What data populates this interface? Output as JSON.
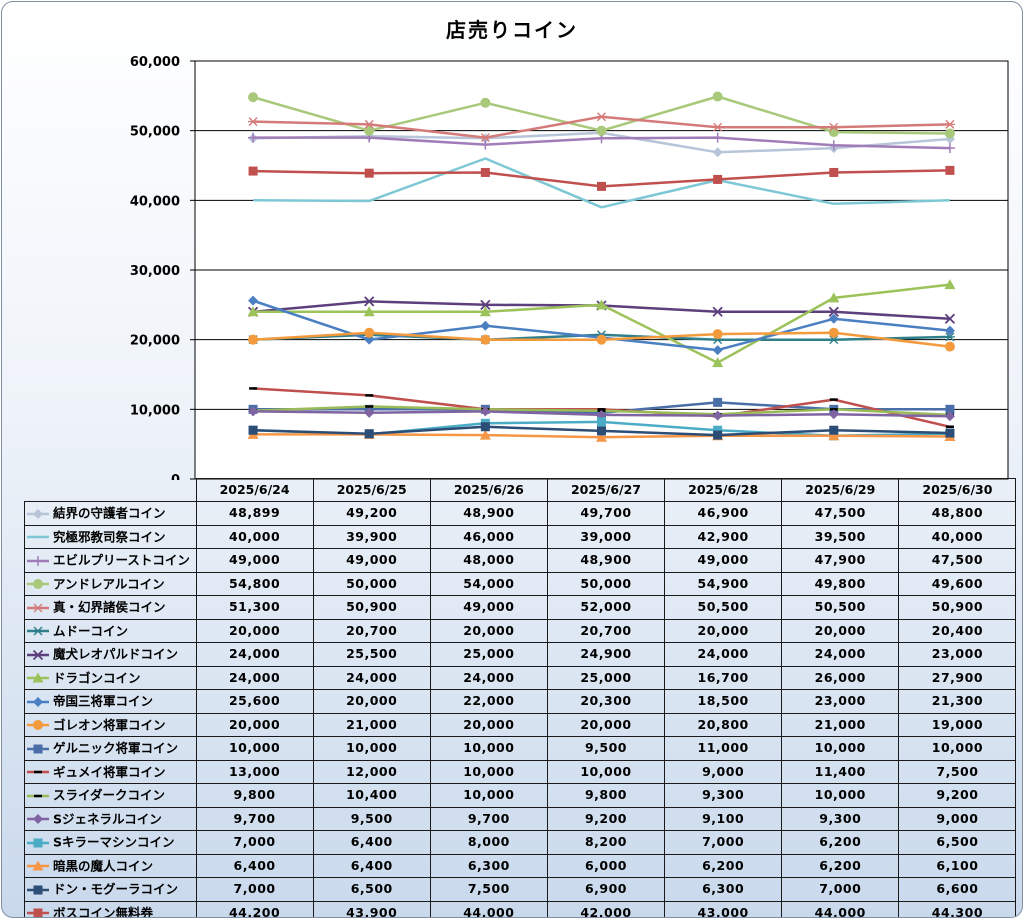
{
  "chart_data": {
    "type": "line",
    "title": "店売りコイン",
    "xlabel": "",
    "ylabel": "",
    "ylim": [
      0,
      60000
    ],
    "yticks": [
      0,
      10000,
      20000,
      30000,
      40000,
      50000,
      60000
    ],
    "ytick_labels": [
      "0",
      "10,000",
      "20,000",
      "30,000",
      "40,000",
      "50,000",
      "60,000"
    ],
    "grid": true,
    "legend": "data-table",
    "categories": [
      "2025/6/24",
      "2025/6/25",
      "2025/6/26",
      "2025/6/27",
      "2025/6/28",
      "2025/6/29",
      "2025/6/30"
    ],
    "series": [
      {
        "name": "結界の守護者コイン",
        "color": "#b8c4d8",
        "marker": "diamond",
        "values": [
          48899,
          49200,
          48900,
          49700,
          46900,
          47500,
          48800
        ],
        "labels": [
          "48,899",
          "49,200",
          "48,900",
          "49,700",
          "46,900",
          "47,500",
          "48,800"
        ]
      },
      {
        "name": "究極邪教司祭コイン",
        "color": "#7ec8d6",
        "marker": "none",
        "values": [
          40000,
          39900,
          46000,
          39000,
          42900,
          39500,
          40000
        ],
        "labels": [
          "40,000",
          "39,900",
          "46,000",
          "39,000",
          "42,900",
          "39,500",
          "40,000"
        ]
      },
      {
        "name": "エビルプリーストコイン",
        "color": "#a07cb8",
        "marker": "plus",
        "values": [
          49000,
          49000,
          48000,
          48900,
          49000,
          47900,
          47500
        ],
        "labels": [
          "49,000",
          "49,000",
          "48,000",
          "48,900",
          "49,000",
          "47,900",
          "47,500"
        ]
      },
      {
        "name": "アンドレアルコイン",
        "color": "#a8c87a",
        "marker": "circle",
        "values": [
          54800,
          50000,
          54000,
          50000,
          54900,
          49800,
          49600
        ],
        "labels": [
          "54,800",
          "50,000",
          "54,000",
          "50,000",
          "54,900",
          "49,800",
          "49,600"
        ]
      },
      {
        "name": "真・幻界諸侯コイン",
        "color": "#d47a78",
        "marker": "star",
        "values": [
          51300,
          50900,
          49000,
          52000,
          50500,
          50500,
          50900
        ],
        "labels": [
          "51,300",
          "50,900",
          "49,000",
          "52,000",
          "50,500",
          "50,500",
          "50,900"
        ]
      },
      {
        "name": "ムドーコイン",
        "color": "#2f7f8a",
        "marker": "star",
        "values": [
          20000,
          20700,
          20000,
          20700,
          20000,
          20000,
          20400
        ],
        "labels": [
          "20,000",
          "20,700",
          "20,000",
          "20,700",
          "20,000",
          "20,000",
          "20,400"
        ]
      },
      {
        "name": "魔犬レオパルドコイン",
        "color": "#5c3f7c",
        "marker": "x",
        "values": [
          24000,
          25500,
          25000,
          24900,
          24000,
          24000,
          23000
        ],
        "labels": [
          "24,000",
          "25,500",
          "25,000",
          "24,900",
          "24,000",
          "24,000",
          "23,000"
        ]
      },
      {
        "name": "ドラゴンコイン",
        "color": "#9cc25a",
        "marker": "triangle",
        "values": [
          24000,
          24000,
          24000,
          25000,
          16700,
          26000,
          27900
        ],
        "labels": [
          "24,000",
          "24,000",
          "24,000",
          "25,000",
          "16,700",
          "26,000",
          "27,900"
        ]
      },
      {
        "name": "帝国三将軍コイン",
        "color": "#4a7fc1",
        "marker": "diamond",
        "values": [
          25600,
          20000,
          22000,
          20300,
          18500,
          23000,
          21300
        ],
        "labels": [
          "25,600",
          "20,000",
          "22,000",
          "20,300",
          "18,500",
          "23,000",
          "21,300"
        ]
      },
      {
        "name": "ゴレオン将軍コイン",
        "color": "#f39a3c",
        "marker": "circle",
        "values": [
          20000,
          21000,
          20000,
          20000,
          20800,
          21000,
          19000
        ],
        "labels": [
          "20,000",
          "21,000",
          "20,000",
          "20,000",
          "20,800",
          "21,000",
          "19,000"
        ]
      },
      {
        "name": "ゲルニック将軍コイン",
        "color": "#4a6fa8",
        "marker": "square",
        "values": [
          10000,
          10000,
          10000,
          9500,
          11000,
          10000,
          10000
        ],
        "labels": [
          "10,000",
          "10,000",
          "10,000",
          "9,500",
          "11,000",
          "10,000",
          "10,000"
        ]
      },
      {
        "name": "ギュメイ将軍コイン",
        "color": "#c0504d",
        "marker": "dash",
        "values": [
          13000,
          12000,
          10000,
          10000,
          9000,
          11400,
          7500
        ],
        "labels": [
          "13,000",
          "12,000",
          "10,000",
          "10,000",
          "9,000",
          "11,400",
          "7,500"
        ]
      },
      {
        "name": "スライダークコイン",
        "color": "#9bbb59",
        "marker": "dash",
        "values": [
          9800,
          10400,
          10000,
          9800,
          9300,
          10000,
          9200
        ],
        "labels": [
          "9,800",
          "10,400",
          "10,000",
          "9,800",
          "9,300",
          "10,000",
          "9,200"
        ]
      },
      {
        "name": "Sジェネラルコイン",
        "color": "#8064a2",
        "marker": "diamond",
        "values": [
          9700,
          9500,
          9700,
          9200,
          9100,
          9300,
          9000
        ],
        "labels": [
          "9,700",
          "9,500",
          "9,700",
          "9,200",
          "9,100",
          "9,300",
          "9,000"
        ]
      },
      {
        "name": "Sキラーマシンコイン",
        "color": "#4bacc6",
        "marker": "square",
        "values": [
          7000,
          6400,
          8000,
          8200,
          7000,
          6200,
          6500
        ],
        "labels": [
          "7,000",
          "6,400",
          "8,000",
          "8,200",
          "7,000",
          "6,200",
          "6,500"
        ]
      },
      {
        "name": "暗黒の魔人コイン",
        "color": "#f79646",
        "marker": "triangle",
        "values": [
          6400,
          6400,
          6300,
          6000,
          6200,
          6200,
          6100
        ],
        "labels": [
          "6,400",
          "6,400",
          "6,300",
          "6,000",
          "6,200",
          "6,200",
          "6,100"
        ]
      },
      {
        "name": "ドン・モグーラコイン",
        "color": "#2c4d75",
        "marker": "square",
        "values": [
          7000,
          6500,
          7500,
          6900,
          6300,
          7000,
          6600
        ],
        "labels": [
          "7,000",
          "6,500",
          "7,500",
          "6,900",
          "6,300",
          "7,000",
          "6,600"
        ]
      },
      {
        "name": "ボスコイン無料券",
        "color": "#c0504d",
        "marker": "square",
        "values": [
          44200,
          43900,
          44000,
          42000,
          43000,
          44000,
          44300
        ],
        "labels": [
          "44,200",
          "43,900",
          "44,000",
          "42,000",
          "43,000",
          "44,000",
          "44,300"
        ]
      }
    ]
  }
}
